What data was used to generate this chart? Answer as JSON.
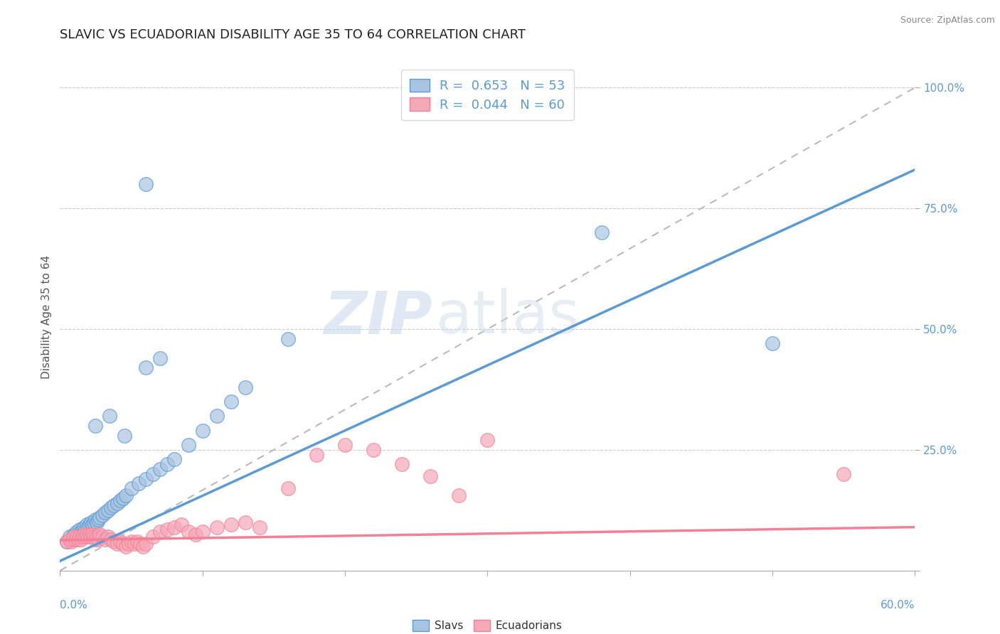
{
  "title": "SLAVIC VS ECUADORIAN DISABILITY AGE 35 TO 64 CORRELATION CHART",
  "source_text": "Source: ZipAtlas.com",
  "ylabel": "Disability Age 35 to 64",
  "xlim": [
    0.0,
    0.6
  ],
  "ylim": [
    0.0,
    1.05
  ],
  "slavic_R": 0.653,
  "slavic_N": 53,
  "ecuadorian_R": 0.044,
  "ecuadorian_N": 60,
  "slavic_color": "#a8c4e0",
  "ecuadorian_color": "#f4a8b8",
  "slavic_line_color": "#5b9bd5",
  "ecuadorian_line_color": "#f48098",
  "diagonal_color": "#bbbbbb",
  "watermark_zip": "ZIP",
  "watermark_atlas": "atlas",
  "legend_labels": [
    "Slavs",
    "Ecuadorians"
  ],
  "yticks": [
    0.0,
    0.25,
    0.5,
    0.75,
    1.0
  ],
  "ytick_labels": [
    "",
    "25.0%",
    "50.0%",
    "75.0%",
    "100.0%"
  ],
  "slavic_scatter_x": [
    0.005,
    0.007,
    0.008,
    0.009,
    0.01,
    0.011,
    0.012,
    0.013,
    0.014,
    0.015,
    0.016,
    0.017,
    0.018,
    0.019,
    0.02,
    0.021,
    0.022,
    0.023,
    0.024,
    0.025,
    0.026,
    0.027,
    0.028,
    0.03,
    0.032,
    0.034,
    0.036,
    0.038,
    0.04,
    0.042,
    0.044,
    0.046,
    0.05,
    0.055,
    0.06,
    0.065,
    0.07,
    0.075,
    0.08,
    0.09,
    0.1,
    0.11,
    0.12,
    0.13,
    0.025,
    0.035,
    0.045,
    0.06,
    0.07,
    0.38,
    0.5,
    0.06,
    0.16
  ],
  "slavic_scatter_y": [
    0.06,
    0.07,
    0.065,
    0.07,
    0.075,
    0.07,
    0.08,
    0.075,
    0.085,
    0.08,
    0.085,
    0.09,
    0.085,
    0.095,
    0.09,
    0.095,
    0.1,
    0.095,
    0.1,
    0.105,
    0.1,
    0.105,
    0.11,
    0.115,
    0.12,
    0.125,
    0.13,
    0.135,
    0.14,
    0.145,
    0.15,
    0.155,
    0.17,
    0.18,
    0.19,
    0.2,
    0.21,
    0.22,
    0.23,
    0.26,
    0.29,
    0.32,
    0.35,
    0.38,
    0.3,
    0.32,
    0.28,
    0.42,
    0.44,
    0.7,
    0.47,
    0.8,
    0.48
  ],
  "ecuadorian_scatter_x": [
    0.005,
    0.007,
    0.008,
    0.009,
    0.01,
    0.011,
    0.012,
    0.013,
    0.014,
    0.015,
    0.016,
    0.017,
    0.018,
    0.019,
    0.02,
    0.021,
    0.022,
    0.023,
    0.024,
    0.025,
    0.026,
    0.027,
    0.028,
    0.03,
    0.032,
    0.034,
    0.036,
    0.038,
    0.04,
    0.042,
    0.044,
    0.046,
    0.048,
    0.05,
    0.052,
    0.054,
    0.056,
    0.058,
    0.06,
    0.065,
    0.07,
    0.075,
    0.08,
    0.085,
    0.09,
    0.095,
    0.1,
    0.11,
    0.12,
    0.13,
    0.14,
    0.16,
    0.18,
    0.2,
    0.22,
    0.24,
    0.26,
    0.28,
    0.3,
    0.55
  ],
  "ecuadorian_scatter_y": [
    0.06,
    0.065,
    0.06,
    0.065,
    0.07,
    0.065,
    0.07,
    0.065,
    0.07,
    0.065,
    0.07,
    0.075,
    0.07,
    0.075,
    0.07,
    0.075,
    0.07,
    0.075,
    0.07,
    0.065,
    0.07,
    0.065,
    0.075,
    0.07,
    0.065,
    0.07,
    0.065,
    0.06,
    0.055,
    0.06,
    0.055,
    0.05,
    0.055,
    0.06,
    0.055,
    0.06,
    0.055,
    0.05,
    0.055,
    0.07,
    0.08,
    0.085,
    0.09,
    0.095,
    0.08,
    0.075,
    0.08,
    0.09,
    0.095,
    0.1,
    0.09,
    0.17,
    0.24,
    0.26,
    0.25,
    0.22,
    0.195,
    0.155,
    0.27,
    0.2
  ]
}
